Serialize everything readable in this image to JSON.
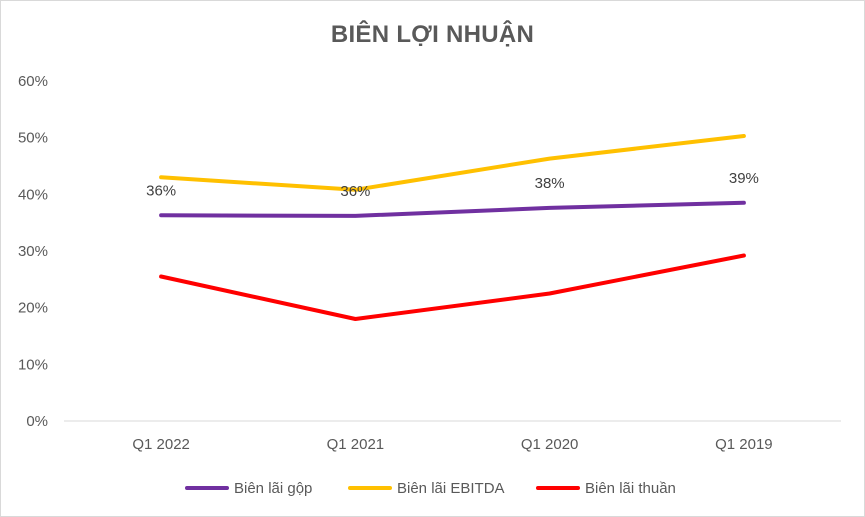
{
  "chart_data": {
    "type": "line",
    "title": "BIÊN LỢI NHUẬN",
    "categories": [
      "Q1 2022",
      "Q1 2021",
      "Q1 2020",
      "Q1 2019"
    ],
    "ylim": [
      0,
      60
    ],
    "yticks": [
      0,
      10,
      20,
      30,
      40,
      50,
      60
    ],
    "ytick_labels": [
      "0%",
      "10%",
      "20%",
      "30%",
      "40%",
      "50%",
      "60%"
    ],
    "grid": false,
    "legend_position": "bottom",
    "series": [
      {
        "name": "Biên lãi gộp",
        "color": "#7030a0",
        "values": [
          36.3,
          36.2,
          37.6,
          38.5
        ],
        "data_labels": [
          "36%",
          "36%",
          "38%",
          "39%"
        ]
      },
      {
        "name": "Biên lãi EBITDA",
        "color": "#ffc000",
        "values": [
          43.0,
          40.8,
          46.3,
          50.3
        ]
      },
      {
        "name": "Biên lãi thuần",
        "color": "#ff0000",
        "values": [
          25.5,
          18.0,
          22.5,
          29.2
        ]
      }
    ]
  }
}
